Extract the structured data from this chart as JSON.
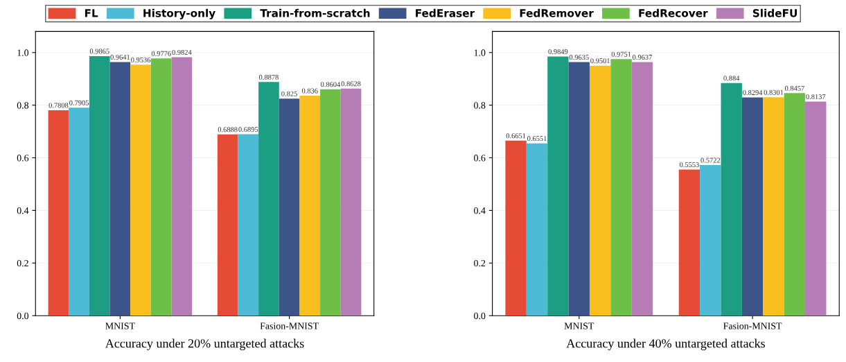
{
  "chart_data": [
    {
      "type": "bar",
      "xlabel": "Accuracy under 20% untargeted attacks",
      "categories": [
        "MNIST",
        "Fasion-MNIST"
      ],
      "ylim": [
        0,
        1.08
      ],
      "yticks": [
        {
          "value": 0,
          "label": "0.0"
        },
        {
          "value": 0.2,
          "label": "0.2"
        },
        {
          "value": 0.4,
          "label": "0.4"
        },
        {
          "value": 0.6,
          "label": "0.6"
        },
        {
          "value": 0.8,
          "label": "0.8"
        },
        {
          "value": 1.0,
          "label": "1.0"
        }
      ],
      "grid": "y",
      "legend": "top",
      "data_labels": true,
      "series": [
        {
          "name": "FL",
          "color": "#e64b35",
          "values": [
            0.7808,
            0.6888
          ]
        },
        {
          "name": "History-only",
          "color": "#4dbbd5",
          "values": [
            0.7905,
            0.6895
          ]
        },
        {
          "name": "Train-from-scratch",
          "color": "#1b9e82",
          "values": [
            0.9865,
            0.8878
          ]
        },
        {
          "name": "FedEraser",
          "color": "#3c5488",
          "values": [
            0.9641,
            0.825
          ]
        },
        {
          "name": "FedRemover",
          "color": "#f9bf1e",
          "values": [
            0.9536,
            0.836
          ]
        },
        {
          "name": "FedRecover",
          "color": "#6dbf47",
          "values": [
            0.9776,
            0.8604
          ]
        },
        {
          "name": "SlideFU",
          "color": "#b57cb6",
          "values": [
            0.9824,
            0.8628
          ]
        }
      ]
    },
    {
      "type": "bar",
      "xlabel": "Accuracy under 40% untargeted attacks",
      "categories": [
        "MNIST",
        "Fasion-MNIST"
      ],
      "ylim": [
        0,
        1.08
      ],
      "yticks": [
        {
          "value": 0,
          "label": "0.0"
        },
        {
          "value": 0.2,
          "label": "0.2"
        },
        {
          "value": 0.4,
          "label": "0.4"
        },
        {
          "value": 0.6,
          "label": "0.6"
        },
        {
          "value": 0.8,
          "label": "0.8"
        },
        {
          "value": 1.0,
          "label": "1.0"
        }
      ],
      "grid": "y",
      "data_labels": true,
      "series": [
        {
          "color": "#e64b35",
          "values": [
            0.6651,
            0.5553
          ]
        },
        {
          "color": "#4dbbd5",
          "values": [
            0.6551,
            0.5722
          ]
        },
        {
          "color": "#1b9e82",
          "values": [
            0.9849,
            0.884
          ]
        },
        {
          "color": "#3c5488",
          "values": [
            0.9635,
            0.8294
          ]
        },
        {
          "color": "#f9bf1e",
          "values": [
            0.9501,
            0.8301
          ]
        },
        {
          "color": "#6dbf47",
          "values": [
            0.9751,
            0.8457
          ]
        },
        {
          "color": "#b57cb6",
          "values": [
            0.9637,
            0.8137
          ]
        }
      ]
    }
  ]
}
